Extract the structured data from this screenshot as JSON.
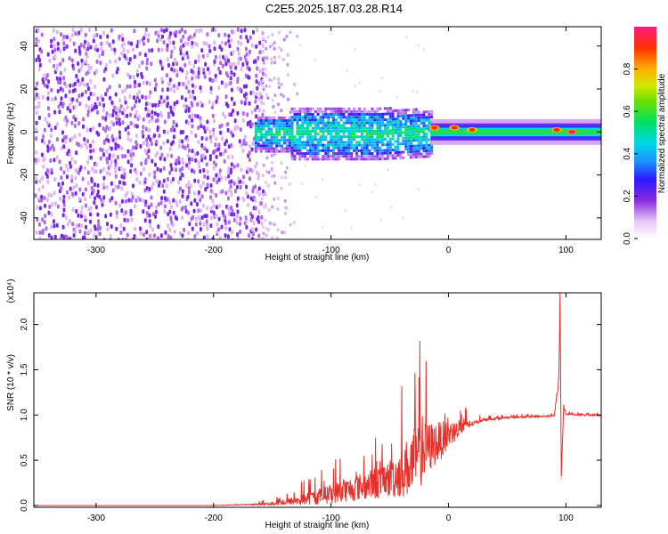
{
  "title": "C2E5.2025.187.03.28.R14",
  "colorbar": {
    "label": "Normalized spectral amplitude",
    "ticks": [
      "0.0",
      "0.2",
      "0.4",
      "0.6",
      "0.8"
    ],
    "tick_values": [
      0.0,
      0.2,
      0.4,
      0.6,
      0.8
    ],
    "range": [
      0,
      1
    ]
  },
  "chart_data": [
    {
      "type": "heatmap",
      "title": "",
      "xlabel": "Height of straight line (km)",
      "ylabel": "Frequency (Hz)",
      "xlim": [
        -353,
        130
      ],
      "ylim": [
        -50,
        49
      ],
      "x_ticks": [
        -300,
        -200,
        -100,
        0,
        100
      ],
      "x_tick_labels": [
        "-300",
        "-200",
        "-100",
        "0",
        "100"
      ],
      "y_ticks": [
        -40,
        -20,
        0,
        20,
        40
      ],
      "y_tick_labels": [
        "-40",
        "-20",
        "0",
        "20",
        "40"
      ],
      "regions": [
        {
          "name": "noise",
          "x_range": [
            -353,
            -160
          ],
          "f_range": [
            -50,
            49
          ],
          "amplitude": 0.08
        },
        {
          "name": "transition",
          "x_range": [
            -160,
            -130
          ],
          "f_range": [
            -50,
            49
          ],
          "amplitude": 0.06
        },
        {
          "name": "broad-signal",
          "x_range": [
            -165,
            -15
          ],
          "f_center": 0,
          "f_halfwidth": 12,
          "amplitude": 0.4
        },
        {
          "name": "narrow-signal",
          "x_range": [
            -15,
            130
          ],
          "f_center": 0,
          "f_halfwidth": 2.5,
          "amplitude": 0.55
        }
      ],
      "peaks": [
        {
          "x": -12,
          "f": 2,
          "amplitude": 0.95
        },
        {
          "x": 5,
          "f": 2,
          "amplitude": 0.95
        },
        {
          "x": 20,
          "f": 1,
          "amplitude": 0.9
        },
        {
          "x": 92,
          "f": 1,
          "amplitude": 0.95
        },
        {
          "x": 105,
          "f": 0,
          "amplitude": 0.98
        }
      ]
    },
    {
      "type": "line",
      "title": "",
      "xlabel": "Height of straight line (km)",
      "ylabel": "SNR (10 * v/v)",
      "y_multiplier": "(x10⁴)",
      "xlim": [
        -353,
        130
      ],
      "ylim": [
        -0.02,
        2.35
      ],
      "x_ticks": [
        -300,
        -200,
        -100,
        0,
        100
      ],
      "x_tick_labels": [
        "-300",
        "-200",
        "-100",
        "0",
        "100"
      ],
      "y_ticks": [
        0.0,
        0.5,
        1.0,
        1.5,
        2.0
      ],
      "y_tick_labels": [
        "0.0",
        "0.5",
        "1.0",
        "1.5",
        "2.0"
      ],
      "color": "#e8302b",
      "series": [
        {
          "x": [
            -353,
            -200,
            -170,
            -150,
            -130,
            -110,
            -90,
            -70,
            -55,
            -45,
            -35,
            -25,
            -15,
            -5,
            0,
            10,
            20,
            30,
            50,
            70,
            90,
            94,
            95,
            96,
            98,
            100,
            110,
            130
          ],
          "y": [
            0.0,
            0.0,
            0.01,
            0.02,
            0.05,
            0.1,
            0.16,
            0.22,
            0.27,
            0.33,
            0.42,
            0.55,
            0.65,
            0.73,
            0.78,
            0.85,
            0.9,
            0.95,
            0.97,
            0.98,
            0.99,
            1.4,
            2.35,
            0.3,
            1.1,
            1.01,
            1.0,
            1.0
          ],
          "envelope": [
            0.0,
            0.0,
            0.01,
            0.04,
            0.1,
            0.18,
            0.25,
            0.32,
            0.38,
            0.5,
            0.65,
            0.75,
            0.55,
            0.4,
            0.3,
            0.18,
            0.06,
            0.03,
            0.02,
            0.02,
            0.02,
            0.1,
            0.1,
            0.1,
            0.05,
            0.02,
            0.02,
            0.02
          ]
        }
      ]
    }
  ]
}
